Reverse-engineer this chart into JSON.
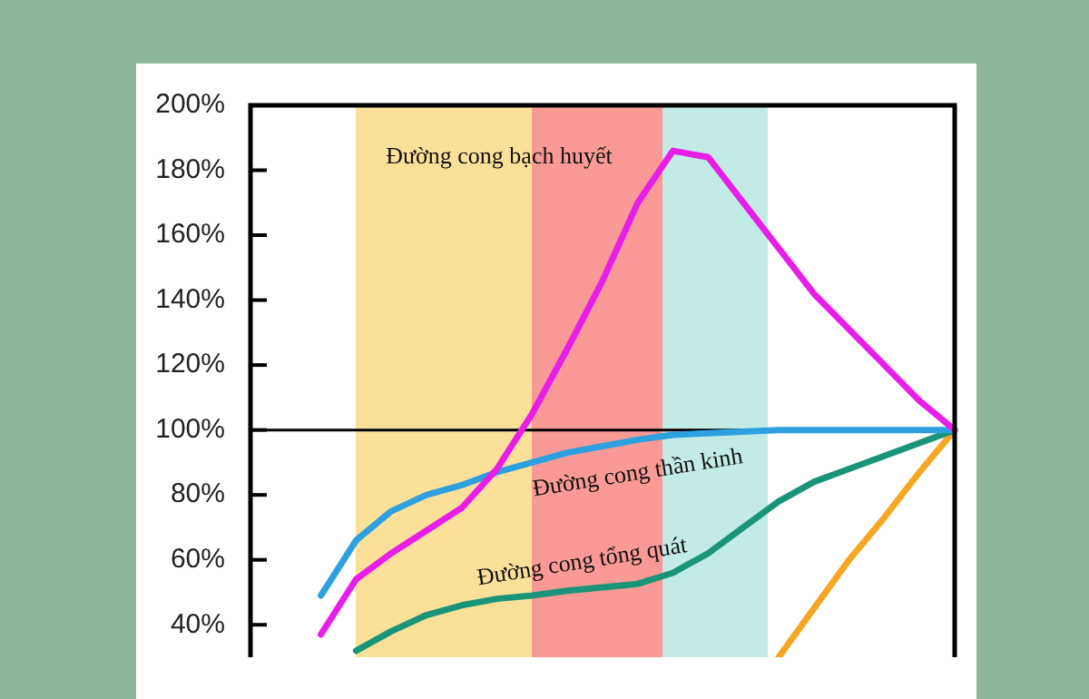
{
  "chart_data": {
    "type": "line",
    "categories": [
      null,
      null,
      null,
      null,
      null,
      null,
      null,
      null,
      null,
      null,
      null,
      null,
      null,
      null,
      null,
      null,
      null,
      null,
      null,
      null,
      null
    ],
    "ylim": [
      30,
      200
    ],
    "yticks": [
      {
        "value": 40,
        "label": "40%"
      },
      {
        "value": 60,
        "label": "60%"
      },
      {
        "value": 80,
        "label": "80%"
      },
      {
        "value": 100,
        "label": "100%"
      },
      {
        "value": 120,
        "label": "120%"
      },
      {
        "value": 140,
        "label": "140%"
      },
      {
        "value": 160,
        "label": "160%"
      },
      {
        "value": 180,
        "label": "180%"
      },
      {
        "value": 200,
        "label": "200%"
      }
    ],
    "tick_labels": "y",
    "grid": false,
    "legend": false,
    "marker": "none",
    "line_style": "solid",
    "series": [
      {
        "color": "#e81ee8",
        "values": [
          null,
          null,
          37,
          54,
          62,
          69,
          76,
          88,
          105,
          125,
          146,
          170,
          186,
          184,
          170,
          156,
          142,
          131,
          120,
          109,
          100
        ]
      },
      {
        "color": "#2ea0e0",
        "values": [
          null,
          null,
          49,
          66,
          75,
          80,
          83,
          87,
          90,
          93,
          95,
          97,
          98.5,
          99,
          99.5,
          100,
          100,
          100,
          100,
          100,
          100
        ]
      },
      {
        "color": "#1a9478",
        "values": [
          null,
          null,
          null,
          32,
          38,
          43,
          46,
          48,
          49,
          50.5,
          51.5,
          52.6,
          56,
          62,
          70,
          78,
          84,
          88,
          92,
          96,
          100
        ]
      },
      {
        "color": "#f5a623",
        "values": [
          null,
          null,
          null,
          null,
          null,
          null,
          null,
          null,
          null,
          null,
          null,
          null,
          null,
          null,
          null,
          30,
          45,
          60,
          73,
          87,
          100
        ]
      }
    ],
    "ref_lines": [
      {
        "axis": "y",
        "value": 100,
        "color": "#000000"
      }
    ],
    "annotations": [
      "Đường cong bạch huyết",
      "Đường cong thần kinh",
      "Đường cong tổng quát"
    ]
  }
}
